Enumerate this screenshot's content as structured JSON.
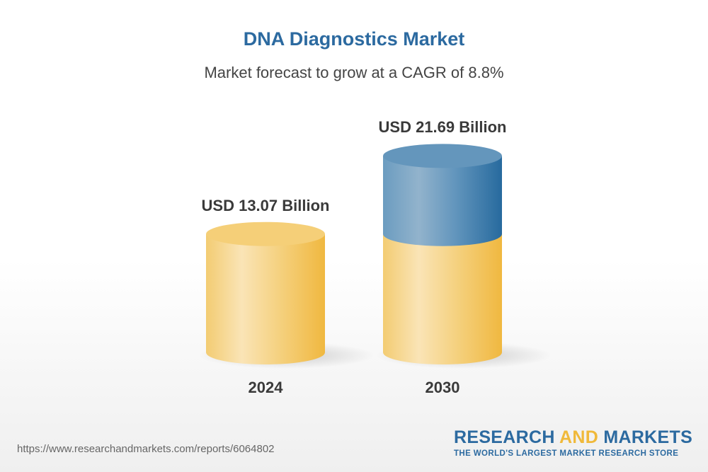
{
  "chart_data": {
    "type": "bar",
    "style": "3d-cylinder",
    "title": "DNA Diagnostics Market",
    "subtitle": "Market forecast to grow at a CAGR of 8.8%",
    "categories": [
      "2024",
      "2030"
    ],
    "values": [
      13.07,
      21.69
    ],
    "data_labels": [
      "USD 13.07 Billion",
      "USD 21.69 Billion"
    ],
    "unit": "USD Billion",
    "colors": {
      "base": "#f2c050",
      "growth": "#2e6da0"
    },
    "grid": false
  },
  "footer": {
    "url": "https://www.researchandmarkets.com/reports/6064802",
    "logo": {
      "part1": "RESEARCH ",
      "part2": "AND",
      "part3": " MARKETS",
      "tagline": "THE WORLD'S LARGEST MARKET RESEARCH STORE"
    }
  }
}
